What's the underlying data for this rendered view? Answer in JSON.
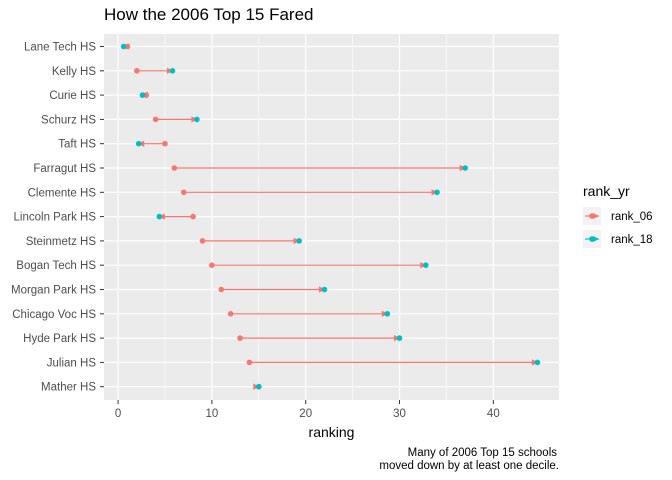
{
  "chart_data": {
    "type": "dumbbell",
    "title": "How the 2006 Top 15 Fared",
    "xlabel": "ranking",
    "ylabel": "",
    "xlim": [
      -1.5,
      47
    ],
    "x_ticks": [
      0,
      10,
      20,
      30,
      40
    ],
    "grid": true,
    "legend_position": "right",
    "legend": {
      "title": "rank_yr",
      "entries": [
        {
          "label": "rank_06",
          "color": "#F8766D"
        },
        {
          "label": "rank_18",
          "color": "#00BFC4"
        }
      ]
    },
    "categories": [
      "Lane Tech HS",
      "Kelly HS",
      "Curie HS",
      "Schurz HS",
      "Taft HS",
      "Farragut HS",
      "Clemente HS",
      "Lincoln Park HS",
      "Steinmetz HS",
      "Bogan Tech HS",
      "Morgan Park HS",
      "Chicago Voc HS",
      "Hyde Park HS",
      "Julian HS",
      "Mather HS"
    ],
    "series": [
      {
        "name": "rank_06",
        "color": "#F8766D",
        "values": [
          1,
          2,
          3,
          4,
          5,
          6,
          7,
          8,
          9,
          10,
          11,
          12,
          13,
          14,
          15
        ]
      },
      {
        "name": "rank_18",
        "color": "#00BFC4",
        "values": [
          0.6,
          5.8,
          2.6,
          8.4,
          2.2,
          37,
          34,
          4.4,
          19.3,
          32.8,
          22,
          28.7,
          30,
          44.7,
          15
        ]
      }
    ],
    "caption": [
      "Many of 2006 Top 15 schools",
      "moved down by at least one decile."
    ]
  }
}
